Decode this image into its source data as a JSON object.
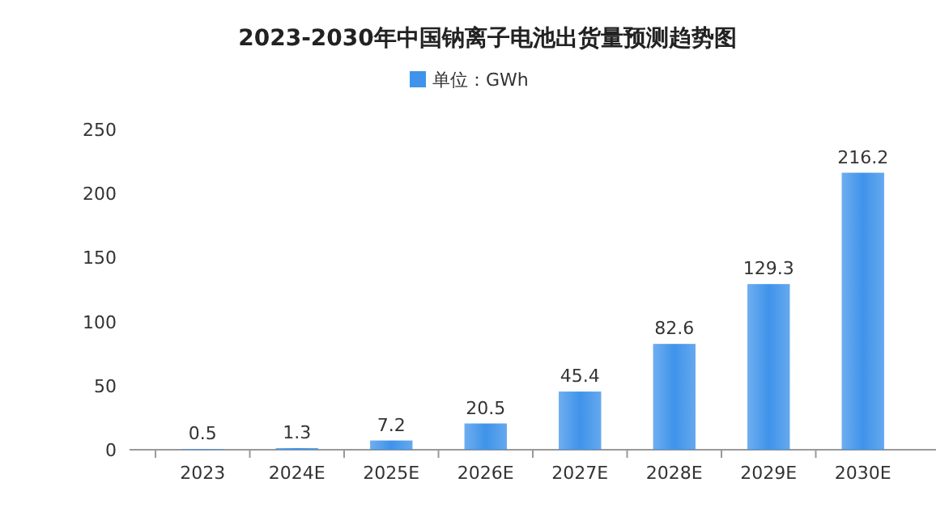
{
  "chart_data": {
    "type": "bar",
    "title": "2023-2030年中国钠离子电池出货量预测趋势图",
    "categories": [
      "2023",
      "2024E",
      "2025E",
      "2026E",
      "2027E",
      "2028E",
      "2029E",
      "2030E"
    ],
    "series": [
      {
        "name": "单位：GWh",
        "color": "#3f93ea",
        "values": [
          0.5,
          1.3,
          7.2,
          20.5,
          45.4,
          82.6,
          129.3,
          216.2
        ]
      }
    ],
    "ylim": [
      0,
      250
    ],
    "yticks": [
      0,
      50,
      100,
      150,
      200,
      250
    ],
    "data_labels": true,
    "legend": "top",
    "grid": false
  }
}
